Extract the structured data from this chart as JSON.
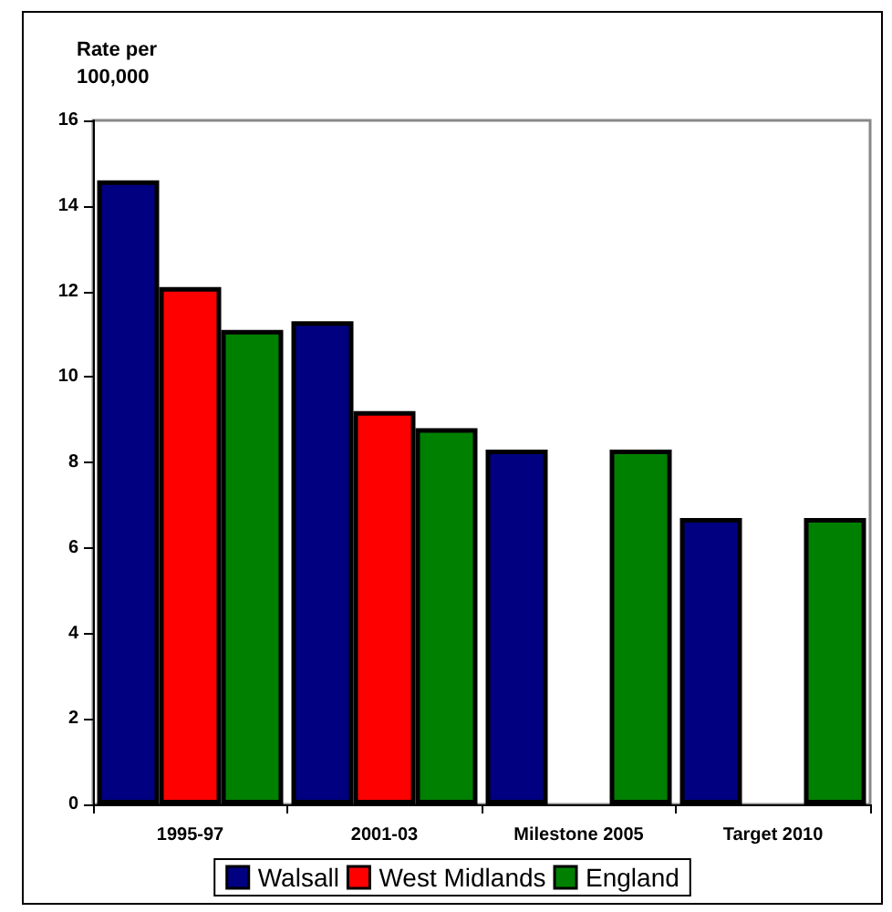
{
  "chart_data": {
    "type": "bar",
    "ylabel": "Rate per\n100,000",
    "categories": [
      "1995-97",
      "2001-03",
      "Milestone 2005",
      "Target 2010"
    ],
    "series": [
      {
        "name": "Walsall",
        "color": "#000080",
        "values": [
          14.6,
          11.3,
          8.3,
          6.7
        ]
      },
      {
        "name": "West Midlands",
        "color": "#ff0000",
        "values": [
          12.1,
          9.2,
          null,
          null
        ]
      },
      {
        "name": "England",
        "color": "#008000",
        "values": [
          11.1,
          8.8,
          8.3,
          6.7
        ]
      }
    ],
    "ylim": [
      0,
      16
    ],
    "yticks": [
      0,
      2,
      4,
      6,
      8,
      10,
      12,
      14,
      16
    ],
    "grid": false,
    "legend": "bottom"
  }
}
